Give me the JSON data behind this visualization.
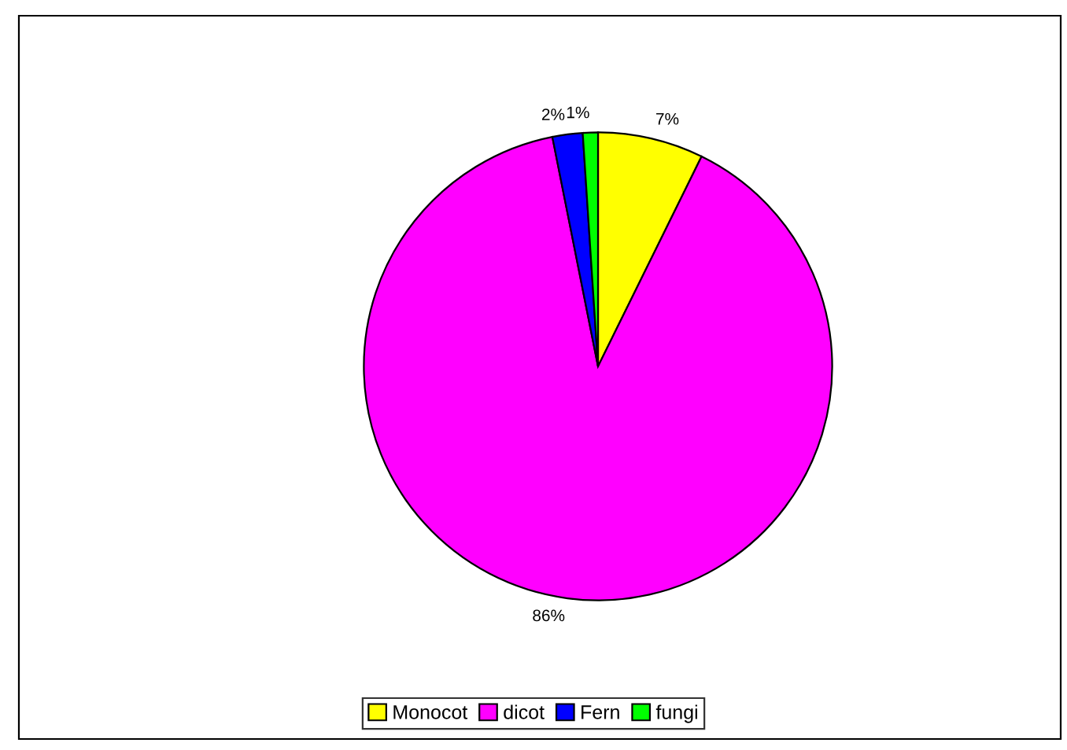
{
  "chart_data": {
    "type": "pie",
    "categories": [
      "Monocot",
      "dicot",
      "Fern",
      "fungi"
    ],
    "values": [
      7,
      86,
      2,
      1
    ],
    "value_labels": [
      "7%",
      "86%",
      "2%",
      "1%"
    ],
    "colors": [
      "#ffff00",
      "#ff00ff",
      "#0000ff",
      "#00ff00"
    ],
    "legend": "bottom"
  }
}
